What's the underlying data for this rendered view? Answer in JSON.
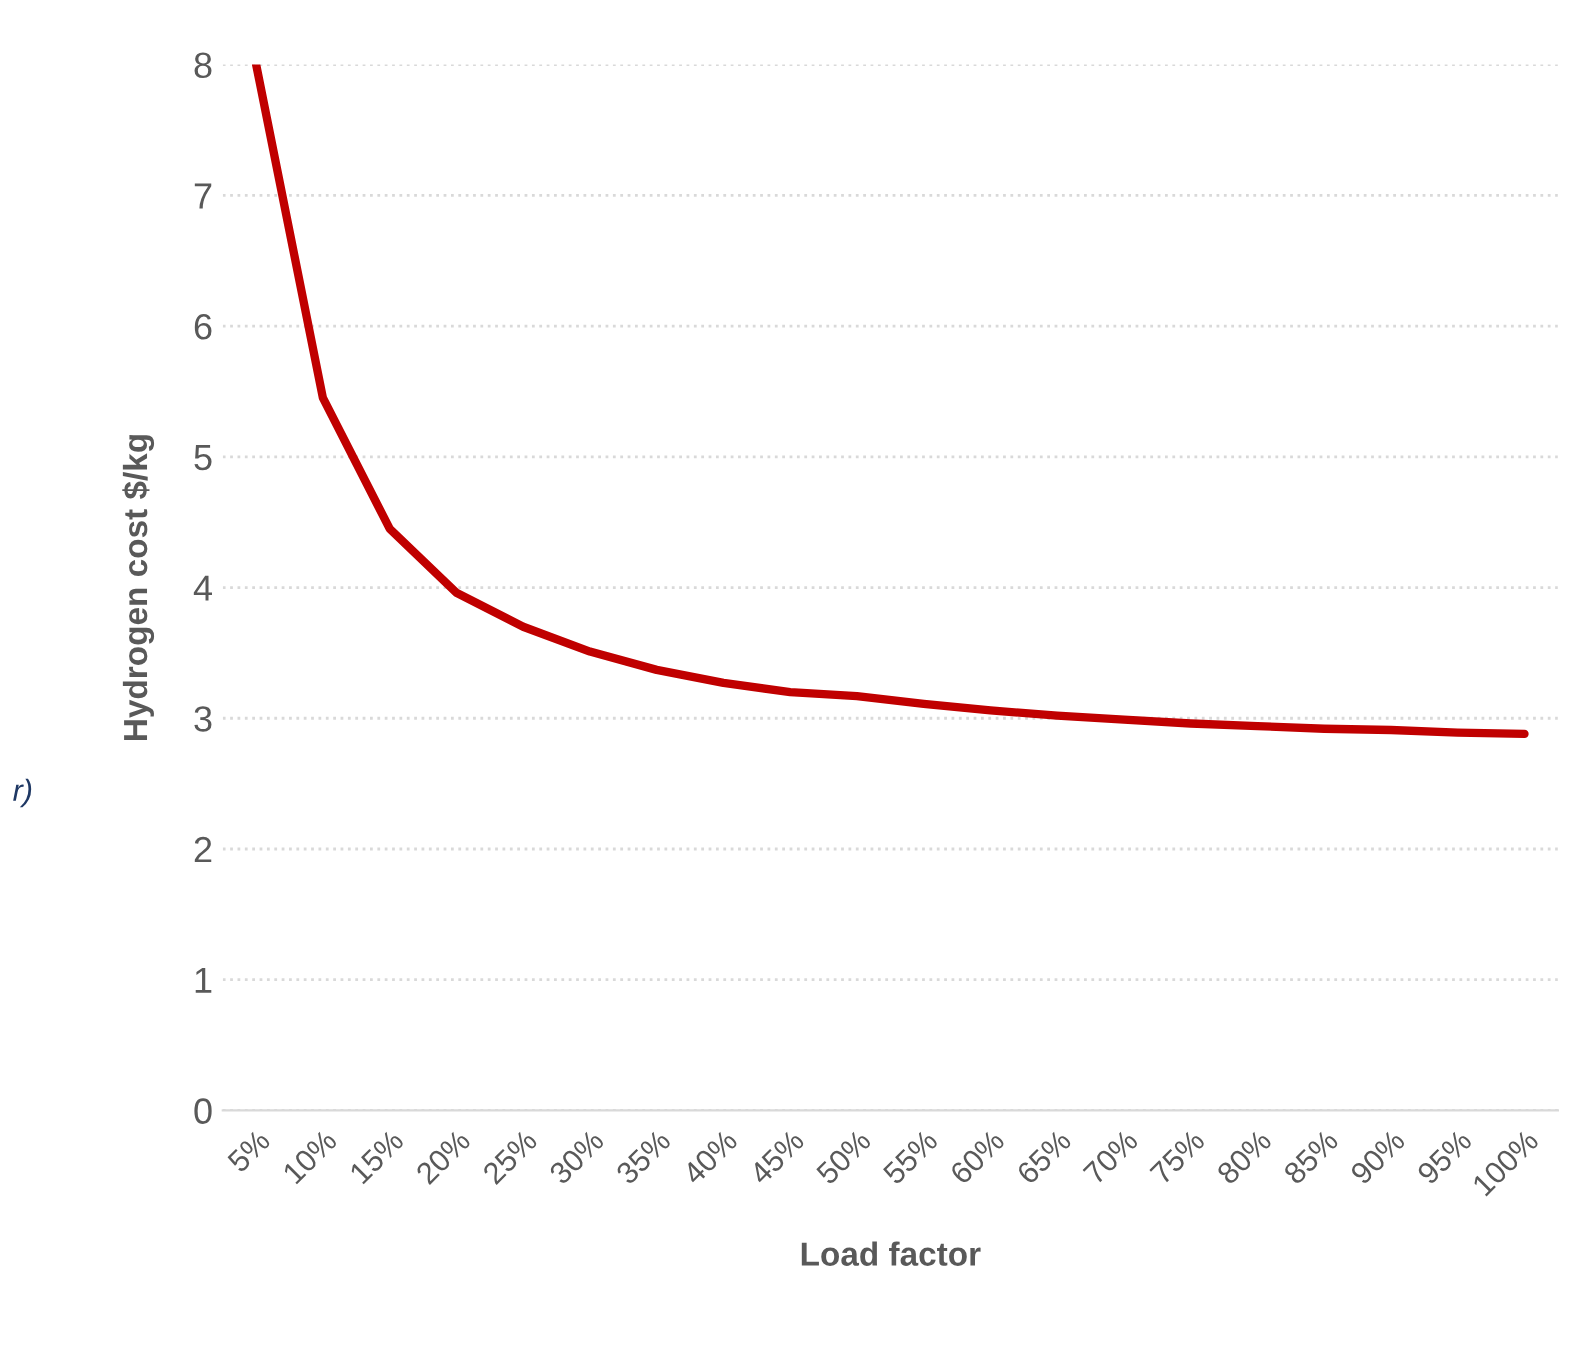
{
  "chart_data": {
    "type": "line",
    "xlabel": "Load factor",
    "ylabel": "Hydrogen cost $/kg",
    "categories": [
      "5%",
      "10%",
      "15%",
      "20%",
      "25%",
      "30%",
      "35%",
      "40%",
      "45%",
      "50%",
      "55%",
      "60%",
      "65%",
      "70%",
      "75%",
      "80%",
      "85%",
      "90%",
      "95%",
      "100%"
    ],
    "series": [
      {
        "color": "#c00000",
        "values": [
          8.0,
          5.45,
          4.45,
          3.96,
          3.7,
          3.51,
          3.37,
          3.27,
          3.2,
          3.17,
          3.11,
          3.06,
          3.02,
          2.99,
          2.96,
          2.94,
          2.92,
          2.91,
          2.89,
          2.88
        ]
      }
    ],
    "ylim": [
      0,
      8
    ],
    "yticks": [
      0,
      1,
      2,
      3,
      4,
      5,
      6,
      7,
      8
    ],
    "grid": "y",
    "legend": false,
    "marker": "none",
    "line_style": "solid",
    "annotations": [
      "r)"
    ]
  }
}
